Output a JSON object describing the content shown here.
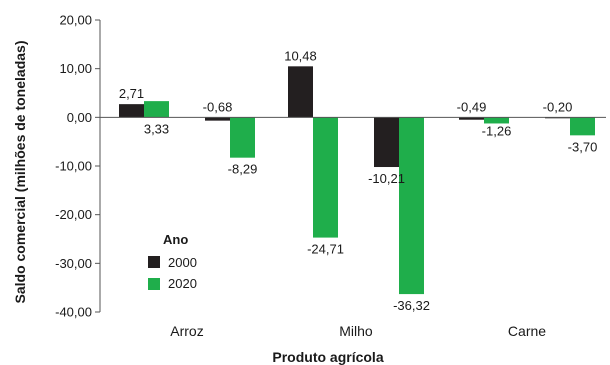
{
  "chart_data": {
    "type": "bar",
    "xlabel": "Produto agrícola",
    "ylabel": "Saldo comercial (milhões de toneladas)",
    "ylim": [
      -40,
      20
    ],
    "yticks": [
      20,
      10,
      0,
      -10,
      -20,
      -30,
      -40
    ],
    "ytick_labels": [
      "20,00",
      "10,00",
      "0,00",
      "-10,00",
      "-20,00",
      "-30,00",
      "-40,00"
    ],
    "groups": [
      {
        "label": "Arroz",
        "subgroups": [
          {
            "values": [
              2.71,
              3.33
            ],
            "labels": [
              "2,71",
              "3,33"
            ]
          },
          {
            "values": [
              -0.68,
              -8.29
            ],
            "labels": [
              "-0,68",
              "-8,29"
            ]
          }
        ]
      },
      {
        "label": "Milho",
        "subgroups": [
          {
            "values": [
              10.48,
              -24.71
            ],
            "labels": [
              "10,48",
              "-24,71"
            ]
          },
          {
            "values": [
              -10.21,
              -36.32
            ],
            "labels": [
              "-10,21",
              "-36,32"
            ]
          }
        ]
      },
      {
        "label": "Carne",
        "subgroups": [
          {
            "values": [
              -0.49,
              -1.26
            ],
            "labels": [
              "-0,49",
              "-1,26"
            ]
          },
          {
            "values": [
              -0.2,
              -3.7
            ],
            "labels": [
              "-0,20",
              "-3,70"
            ]
          }
        ]
      }
    ],
    "series": [
      {
        "name": "2000",
        "color": "#231f20"
      },
      {
        "name": "2020",
        "color": "#1fae4b"
      }
    ],
    "legend": {
      "title": "Ano",
      "position": "left-lower"
    },
    "grid": false
  }
}
